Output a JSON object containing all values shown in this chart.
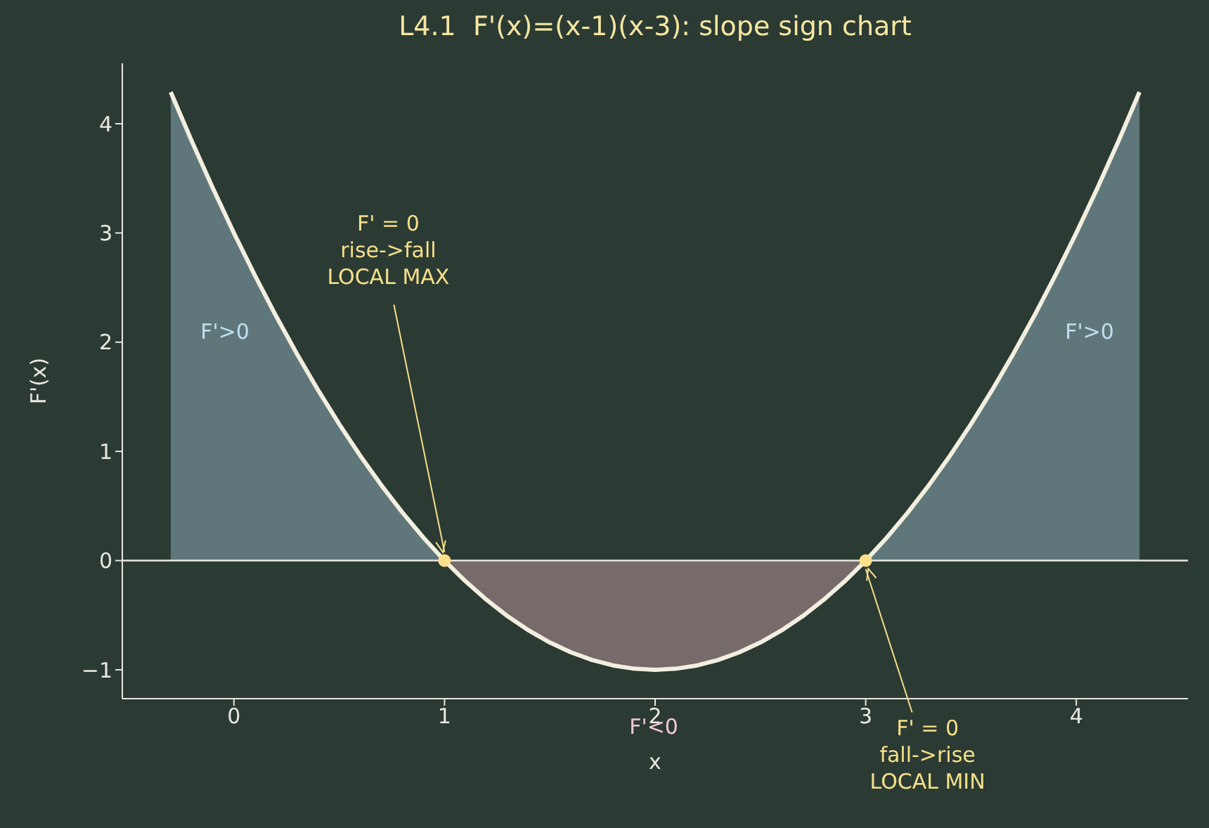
{
  "chart_data": {
    "type": "line",
    "title": "L4.1  F'(x)=(x-1)(x-3): slope sign chart",
    "xlabel": "x",
    "ylabel": "F'(x)",
    "x": [
      -0.3,
      -0.2,
      -0.1,
      0,
      0.1,
      0.2,
      0.3,
      0.4,
      0.5,
      0.6,
      0.7,
      0.8,
      0.9,
      1,
      1.1,
      1.2,
      1.3,
      1.4,
      1.5,
      1.6,
      1.7,
      1.8,
      1.9,
      2,
      2.1,
      2.2,
      2.3,
      2.4,
      2.5,
      2.6,
      2.7,
      2.8,
      2.9,
      3,
      3.1,
      3.2,
      3.3,
      3.4,
      3.5,
      3.6,
      3.7,
      3.8,
      3.9,
      4,
      4.1,
      4.2,
      4.3
    ],
    "series": [
      {
        "type": "area",
        "color": "#5f777a",
        "values": [
          4.29,
          3.84,
          3.41,
          3,
          2.61,
          2.24,
          1.89,
          1.56,
          1.25,
          0.96,
          0.69,
          0.44,
          0.21,
          0,
          null,
          null,
          null,
          null,
          null,
          null,
          null,
          null,
          null,
          null,
          null,
          null,
          null,
          null,
          null,
          null,
          null,
          null,
          null,
          0,
          0.21,
          0.44,
          0.69,
          0.96,
          1.25,
          1.56,
          1.89,
          2.24,
          2.61,
          3,
          3.41,
          3.84,
          4.29
        ]
      },
      {
        "type": "area",
        "color": "#766b6a",
        "values": [
          null,
          null,
          null,
          null,
          null,
          null,
          null,
          null,
          null,
          null,
          null,
          null,
          null,
          0,
          -0.19,
          -0.36,
          -0.51,
          -0.64,
          -0.75,
          -0.84,
          -0.91,
          -0.96,
          -0.99,
          -1,
          -0.99,
          -0.96,
          -0.91,
          -0.84,
          -0.75,
          -0.64,
          -0.51,
          -0.36,
          -0.19,
          0,
          null,
          null,
          null,
          null,
          null,
          null,
          null,
          null,
          null,
          null,
          null,
          null,
          null
        ]
      },
      {
        "color": "#f3efe0",
        "marker": "none",
        "values": [
          4.29,
          3.84,
          3.41,
          3,
          2.61,
          2.24,
          1.89,
          1.56,
          1.25,
          0.96,
          0.69,
          0.44,
          0.21,
          0,
          -0.19,
          -0.36,
          -0.51,
          -0.64,
          -0.75,
          -0.84,
          -0.91,
          -0.96,
          -0.99,
          -1,
          -0.99,
          -0.96,
          -0.91,
          -0.84,
          -0.75,
          -0.64,
          -0.51,
          -0.36,
          -0.19,
          0,
          0.21,
          0.44,
          0.69,
          0.96,
          1.25,
          1.56,
          1.89,
          2.24,
          2.61,
          3,
          3.41,
          3.84,
          4.29
        ]
      },
      {
        "type": "scatter",
        "color": "#ffe08a",
        "marker": "circle",
        "x": [
          1,
          3
        ],
        "values": [
          0,
          0
        ]
      }
    ],
    "xlim": [
      -0.53,
      4.53
    ],
    "xticks": [
      0,
      1,
      2,
      3,
      4
    ],
    "ylim": [
      -1.2645,
      4.554
    ],
    "yticks": [
      -1,
      0,
      1,
      2,
      3,
      4
    ],
    "grid": false,
    "legend": false,
    "ref_lines": [
      {
        "axis": "y",
        "value": 0,
        "color": "#e8e8e0"
      }
    ],
    "annotations": [
      {
        "text": "F' = 0\nrise->fall\nLOCAL MAX",
        "x": 1,
        "y": 0
      },
      {
        "text": "F' = 0\nfall->rise\nLOCAL MIN",
        "x": 3,
        "y": 0
      },
      "F'>0",
      "F'>0",
      "F'<0"
    ]
  }
}
